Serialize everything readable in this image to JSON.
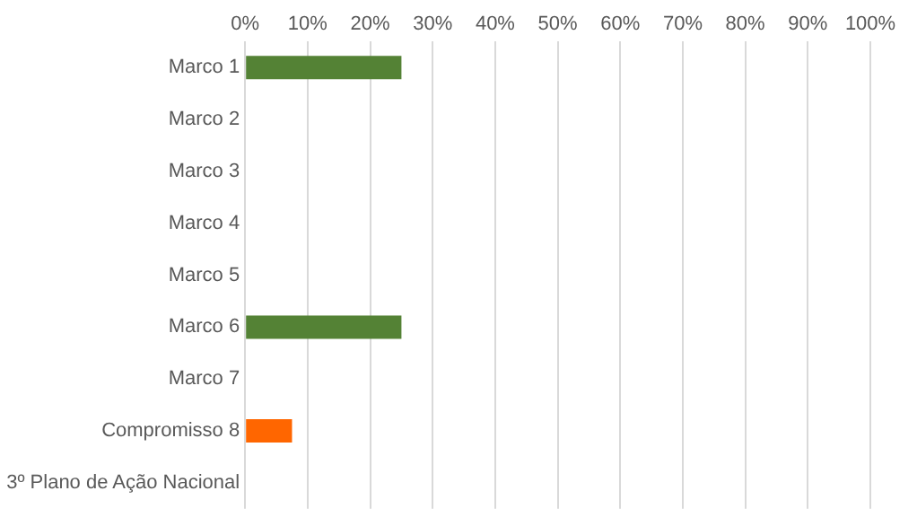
{
  "chart_data": {
    "type": "bar",
    "orientation": "horizontal",
    "categories": [
      "Marco 1",
      "Marco 2",
      "Marco 3",
      "Marco 4",
      "Marco 5",
      "Marco 6",
      "Marco 7",
      "Compromisso 8",
      "3º Plano de Ação Nacional"
    ],
    "values": [
      25,
      0,
      0,
      0,
      0,
      25,
      0,
      7.5,
      0
    ],
    "colors": [
      "#548235",
      "#548235",
      "#548235",
      "#548235",
      "#548235",
      "#548235",
      "#548235",
      "#ff6600",
      "#548235"
    ],
    "xlim": [
      0,
      100
    ],
    "xticks": [
      {
        "value": 0,
        "label": "0%"
      },
      {
        "value": 10,
        "label": "10%"
      },
      {
        "value": 20,
        "label": "20%"
      },
      {
        "value": 30,
        "label": "30%"
      },
      {
        "value": 40,
        "label": "40%"
      },
      {
        "value": 50,
        "label": "50%"
      },
      {
        "value": 60,
        "label": "60%"
      },
      {
        "value": 70,
        "label": "70%"
      },
      {
        "value": 80,
        "label": "80%"
      },
      {
        "value": 90,
        "label": "90%"
      },
      {
        "value": 100,
        "label": "100%"
      }
    ],
    "grid": "x",
    "legend": false
  }
}
